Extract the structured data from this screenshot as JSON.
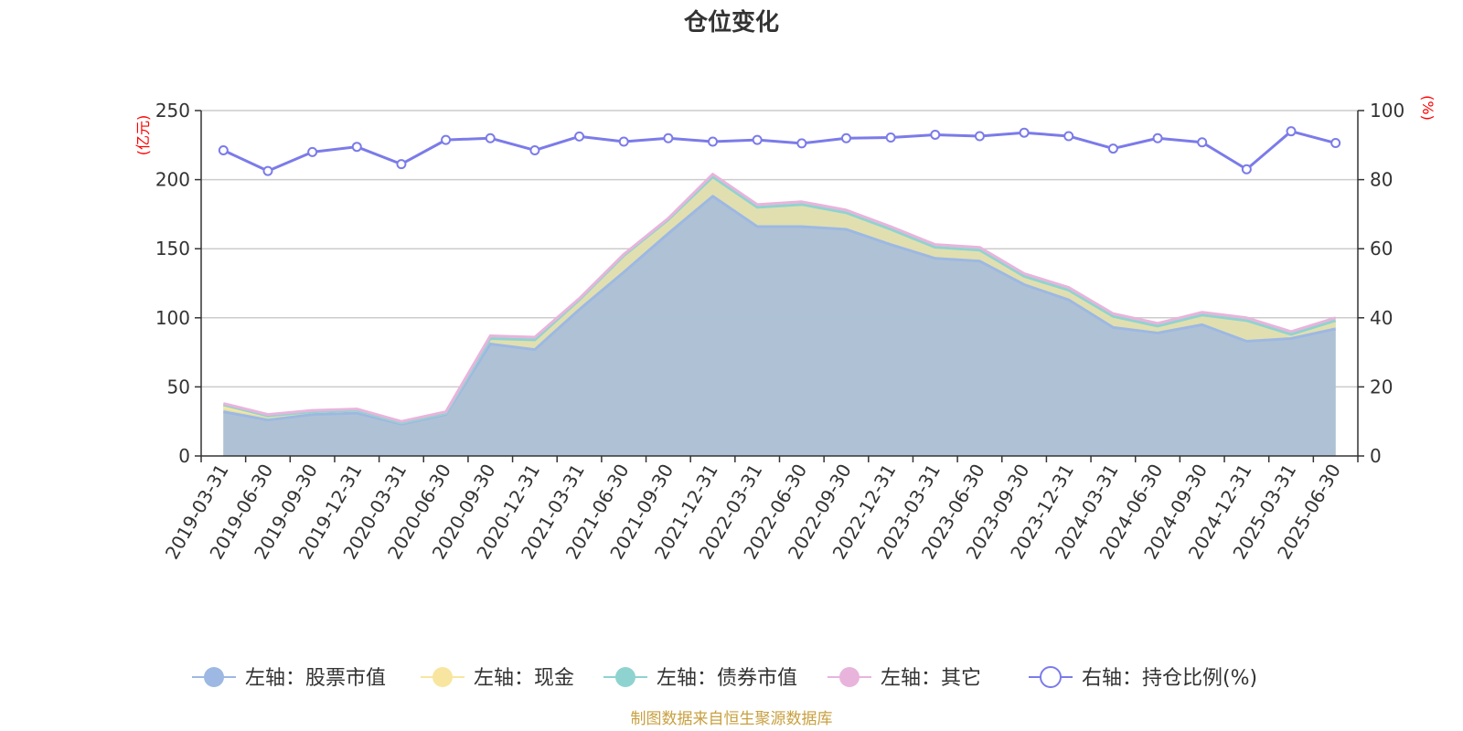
{
  "chart_data": {
    "type": "area",
    "title": "仓位变化",
    "left_axis_unit": "(亿元)",
    "right_axis_unit": "(%)",
    "left_ylim": [
      0,
      250
    ],
    "left_ticks": [
      "0",
      "50",
      "100",
      "150",
      "200",
      "250"
    ],
    "right_ylim": [
      0,
      100
    ],
    "right_ticks": [
      "0",
      "20",
      "40",
      "60",
      "80",
      "100"
    ],
    "grid": true,
    "legend_position": "bottom",
    "x": [
      "2019-03-31",
      "2019-06-30",
      "2019-09-30",
      "2019-12-31",
      "2020-03-31",
      "2020-06-30",
      "2020-09-30",
      "2020-12-31",
      "2021-03-31",
      "2021-06-30",
      "2021-09-30",
      "2021-12-31",
      "2022-03-31",
      "2022-06-30",
      "2022-09-30",
      "2022-12-31",
      "2023-03-31",
      "2023-06-30",
      "2023-09-30",
      "2023-12-31",
      "2024-03-31",
      "2024-06-30",
      "2024-09-30",
      "2024-12-31",
      "2025-03-31",
      "2025-06-30"
    ],
    "series": [
      {
        "name": "左轴：股票市值",
        "axis": "left",
        "color": "#9db8e2",
        "values": [
          32,
          26,
          30,
          31,
          23,
          30,
          81,
          77,
          106,
          133,
          161,
          188,
          166,
          166,
          164,
          153,
          143,
          141,
          124,
          113,
          93,
          89,
          95,
          83,
          85,
          92
        ]
      },
      {
        "name": "左轴：现金",
        "axis": "left",
        "color": "#f8e6a0",
        "values": [
          3,
          3,
          2,
          2,
          1,
          1,
          4,
          7,
          7,
          12,
          10,
          14,
          14,
          16,
          12,
          11,
          8,
          8,
          6,
          7,
          8,
          5,
          7,
          15,
          3,
          6
        ]
      },
      {
        "name": "左轴：债券市值",
        "axis": "left",
        "color": "#8fd3d0",
        "values": [
          2,
          0,
          0,
          0,
          0,
          0,
          0,
          0,
          0,
          0,
          0,
          0,
          0,
          0,
          0,
          0,
          0,
          0,
          0,
          0,
          0,
          0,
          0,
          0,
          0,
          0
        ]
      },
      {
        "name": "左轴：其它",
        "axis": "left",
        "color": "#e8b4dc",
        "values": [
          1,
          1,
          1,
          1,
          1,
          1,
          2,
          2,
          1,
          1,
          1,
          2,
          2,
          2,
          2,
          2,
          2,
          2,
          2,
          2,
          2,
          2,
          2,
          2,
          2,
          2
        ]
      },
      {
        "name": "右轴：持仓比例(%)",
        "axis": "right",
        "color": "#7b7bea",
        "values": [
          88.5,
          82.5,
          88,
          89.5,
          84.5,
          91.5,
          92,
          88.5,
          92.5,
          91,
          92,
          91,
          91.5,
          90.5,
          92,
          92.2,
          93,
          92.6,
          93.6,
          92.6,
          89,
          92,
          90.8,
          83,
          94,
          90.6
        ]
      }
    ],
    "source": "制图数据来自恒生聚源数据库"
  }
}
